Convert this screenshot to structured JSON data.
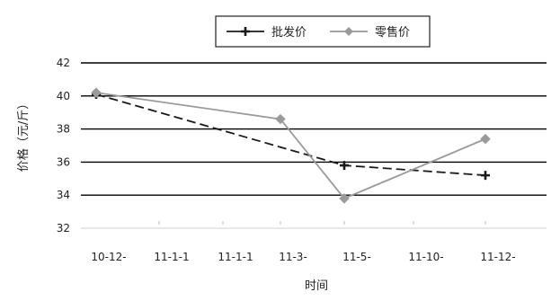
{
  "chart_data": {
    "type": "line",
    "title": "",
    "xlabel": "时间",
    "ylabel": "价格（元/斤）",
    "categories": [
      "10-12-",
      "11-1-1",
      "11-1-1",
      "11-3-",
      "11-5-",
      "11-10-",
      "11-12-"
    ],
    "yticks": [
      "42",
      "40",
      "38",
      "36",
      "34",
      "32"
    ],
    "ylim": [
      32,
      42
    ],
    "grid": true,
    "legend_position": "top-right",
    "series": [
      {
        "name": "批发价",
        "values": [
          40.1,
          null,
          null,
          null,
          35.8,
          null,
          35.2
        ]
      },
      {
        "name": "零售价",
        "values": [
          40.2,
          null,
          null,
          38.6,
          33.8,
          null,
          37.4
        ]
      }
    ],
    "colors": {
      "series1": "#1a1a1a",
      "series2": "#9a9a9a",
      "grid": "#000000"
    }
  }
}
